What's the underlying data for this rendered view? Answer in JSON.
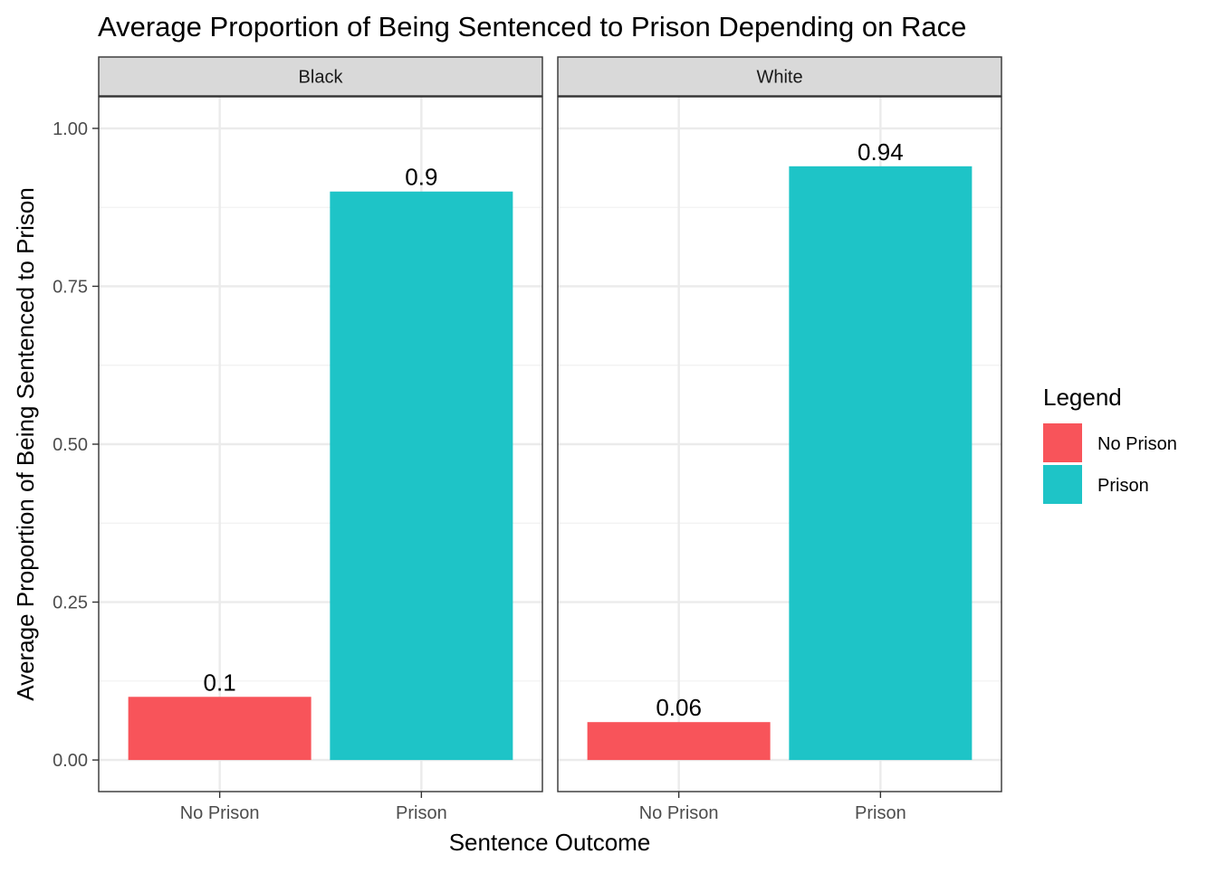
{
  "chart_data": {
    "type": "bar",
    "title": "Average Proportion of Being Sentenced to Prison Depending on Race",
    "xlabel": "Sentence Outcome",
    "ylabel": "Average Proportion of Being Sentenced to Prison",
    "ylim": [
      -0.05,
      1.05
    ],
    "yticks": [
      0.0,
      0.25,
      0.5,
      0.75,
      1.0
    ],
    "ytick_labels": [
      "0.00",
      "0.25",
      "0.50",
      "0.75",
      "1.00"
    ],
    "categories": [
      "No Prison",
      "Prison"
    ],
    "grid": true,
    "facets": [
      {
        "name": "Black",
        "values": [
          0.1,
          0.9
        ],
        "labels": [
          "0.1",
          "0.9"
        ]
      },
      {
        "name": "White",
        "values": [
          0.06,
          0.94
        ],
        "labels": [
          "0.06",
          "0.94"
        ]
      }
    ],
    "legend": {
      "title": "Legend",
      "placement": "right",
      "entries": [
        {
          "label": "No Prison",
          "color": "#F8545A"
        },
        {
          "label": "Prison",
          "color": "#1EC4C7"
        }
      ]
    },
    "colors": {
      "No Prison": "#F8545A",
      "Prison": "#1EC4C7"
    }
  }
}
